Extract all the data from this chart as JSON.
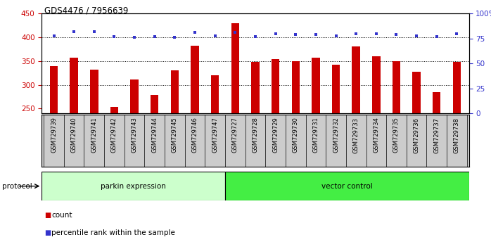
{
  "title": "GDS4476 / 7956639",
  "samples": [
    "GSM729739",
    "GSM729740",
    "GSM729741",
    "GSM729742",
    "GSM729743",
    "GSM729744",
    "GSM729745",
    "GSM729746",
    "GSM729747",
    "GSM729727",
    "GSM729728",
    "GSM729729",
    "GSM729730",
    "GSM729731",
    "GSM729732",
    "GSM729733",
    "GSM729734",
    "GSM729735",
    "GSM729736",
    "GSM729737",
    "GSM729738"
  ],
  "counts": [
    340,
    358,
    332,
    253,
    311,
    278,
    330,
    383,
    320,
    430,
    348,
    355,
    350,
    358,
    342,
    381,
    360,
    350,
    328,
    284,
    348
  ],
  "percentiles": [
    78,
    82,
    82,
    77,
    76,
    77,
    76,
    81,
    78,
    81,
    77,
    80,
    79,
    79,
    78,
    80,
    80,
    79,
    78,
    77,
    80
  ],
  "group_parkin_count": 9,
  "group_vector_count": 12,
  "ylim_left": [
    240,
    450
  ],
  "ylim_right": [
    0,
    100
  ],
  "yticks_left": [
    250,
    300,
    350,
    400,
    450
  ],
  "yticks_right": [
    0,
    25,
    50,
    75,
    100
  ],
  "bar_color": "#CC0000",
  "dot_color": "#3333CC",
  "parkin_color": "#CCFFCC",
  "vector_color": "#44EE44",
  "grid_color": "#888888",
  "ylabel_left_color": "#CC0000",
  "ylabel_right_color": "#3333CC",
  "xlabel_bg": "#CCCCCC",
  "bar_width": 0.4
}
